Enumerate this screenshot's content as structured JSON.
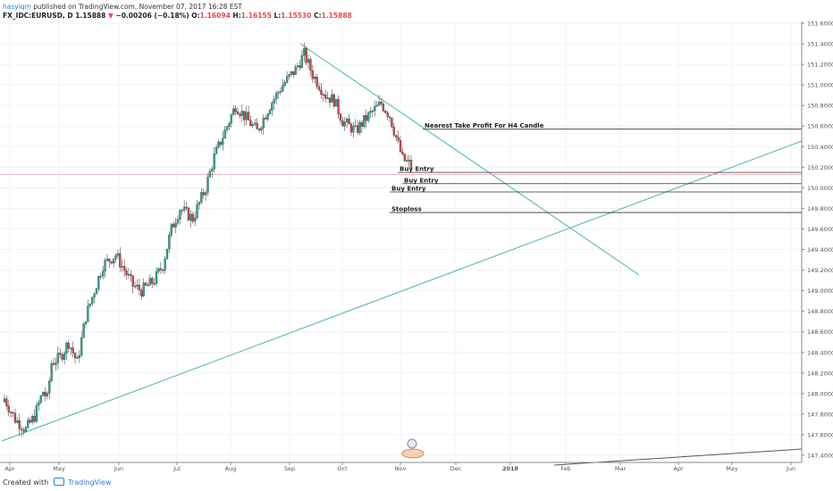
{
  "header": {
    "author": "hasyiqm",
    "published_text": "published on TradingView.com, November 07, 2017 16:28 EST",
    "symbol": "FX_IDC:EURUSD, D",
    "last": "1.15888",
    "change": "−0.00206 (−0.18%)",
    "o_label": "O:",
    "o_value": "1.16094",
    "h_label": "H:",
    "h_value": "1.16155",
    "l_label": "L:",
    "l_value": "1.15530",
    "c_label": "C:",
    "c_value": "1.15888",
    "down_color": "#e24a4a"
  },
  "footer": {
    "created_with": "Created with",
    "brand": "TradingView",
    "brand_color": "#2f7ed8"
  },
  "chart_data": {
    "type": "candlestick",
    "y_ticks": [
      "151.6000",
      "151.4000",
      "151.2000",
      "151.0000",
      "150.8000",
      "150.6000",
      "150.4000",
      "150.2000",
      "150.0000",
      "149.8000",
      "149.6000",
      "149.4000",
      "149.2000",
      "149.0000",
      "148.8000",
      "148.6000",
      "148.4000",
      "148.2000",
      "148.0000",
      "147.8000",
      "147.6000",
      "147.4000"
    ],
    "ylim": [
      147.35,
      151.65
    ],
    "x_ticks": [
      "Apr",
      "May",
      "Jun",
      "Jul",
      "Aug",
      "Sep",
      "Oct",
      "Nov",
      "Dec",
      "2018",
      "Feb",
      "Mar",
      "Apr",
      "May",
      "Jun"
    ],
    "up_color": "#26a69a",
    "down_color": "#c94a45",
    "trendline_color": "#4cb89c",
    "annotations": [
      {
        "text": "Nearest Take Profit For H4 Candle",
        "price": 150.57
      },
      {
        "text": "Buy Entry",
        "price": 150.15
      },
      {
        "text": "Buy Entry",
        "price": 150.04
      },
      {
        "text": "Buy Entry",
        "price": 149.96
      },
      {
        "text": "Stoploss",
        "price": 149.76
      }
    ]
  }
}
